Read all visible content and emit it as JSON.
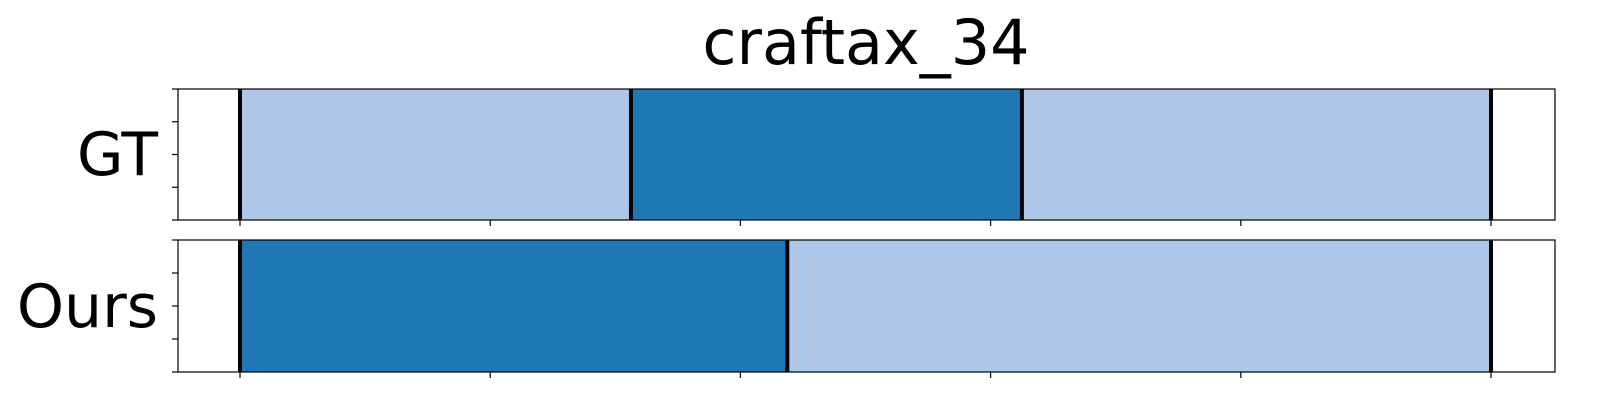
{
  "chart_data": {
    "type": "segmentation-timeline",
    "title": "craftax_34",
    "xlim": [
      0,
      1.1
    ],
    "tick_positions": [
      0,
      0.2,
      0.4,
      0.6,
      0.8,
      1.0
    ],
    "rows": [
      {
        "label": "GT",
        "boundaries": [
          0,
          0.3125,
          0.625,
          1.0
        ],
        "segments": [
          {
            "start": 0,
            "end": 0.3125,
            "class": "light"
          },
          {
            "start": 0.3125,
            "end": 0.625,
            "class": "dark"
          },
          {
            "start": 0.625,
            "end": 1.0,
            "class": "light"
          }
        ]
      },
      {
        "label": "Ours",
        "boundaries": [
          0,
          0.4375,
          1.0
        ],
        "segments": [
          {
            "start": 0,
            "end": 0.4375,
            "class": "dark"
          },
          {
            "start": 0.4375,
            "end": 1.0,
            "class": "light"
          }
        ]
      }
    ],
    "colors": {
      "light": "#aec7e8",
      "dark": "#1f77b4",
      "boundary": "#000000",
      "axes": "#000000"
    }
  }
}
